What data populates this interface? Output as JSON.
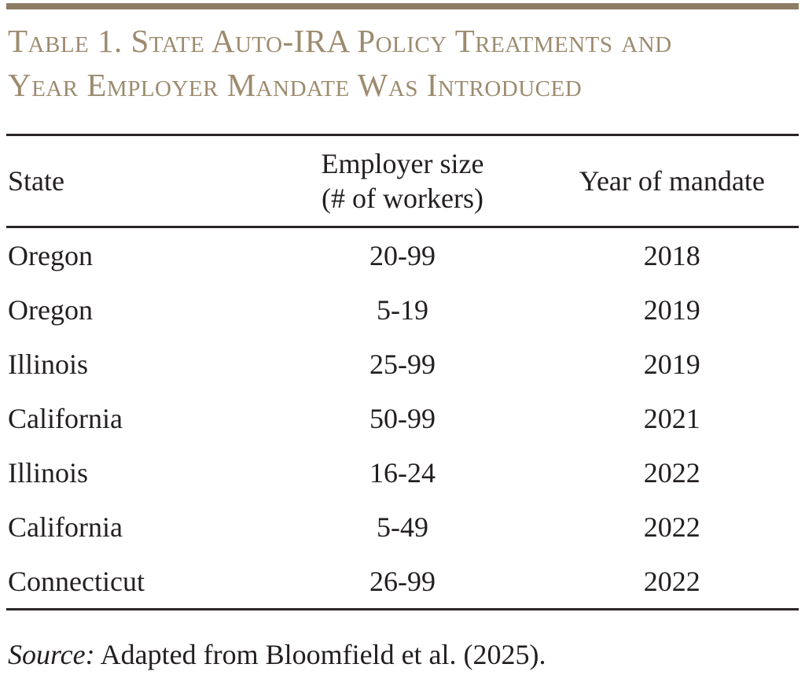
{
  "title": {
    "line1": "Table 1. State Auto-IRA Policy Treatments and",
    "line2": "Year Employer Mandate Was Introduced"
  },
  "table": {
    "header": {
      "state": "State",
      "employer_size_line1": "Employer size",
      "employer_size_line2": "(# of workers)",
      "year": "Year of mandate"
    },
    "rows": [
      {
        "state": "Oregon",
        "employer_size": "20-99",
        "year": "2018"
      },
      {
        "state": "Oregon",
        "employer_size": "5-19",
        "year": "2019"
      },
      {
        "state": "Illinois",
        "employer_size": "25-99",
        "year": "2019"
      },
      {
        "state": "California",
        "employer_size": "50-99",
        "year": "2021"
      },
      {
        "state": "Illinois",
        "employer_size": "16-24",
        "year": "2022"
      },
      {
        "state": "California",
        "employer_size": "5-49",
        "year": "2022"
      },
      {
        "state": "Connecticut",
        "employer_size": "26-99",
        "year": "2022"
      }
    ]
  },
  "source": {
    "label": "Source:",
    "text": "Adapted from Bloomfield et al. (2025)."
  },
  "colors": {
    "accent_rule_brown": "#8d7d64",
    "title_tan": "#9d8b6f",
    "text_black": "#231f20",
    "table_rule_black": "#2a2526",
    "background": "#ffffff"
  }
}
